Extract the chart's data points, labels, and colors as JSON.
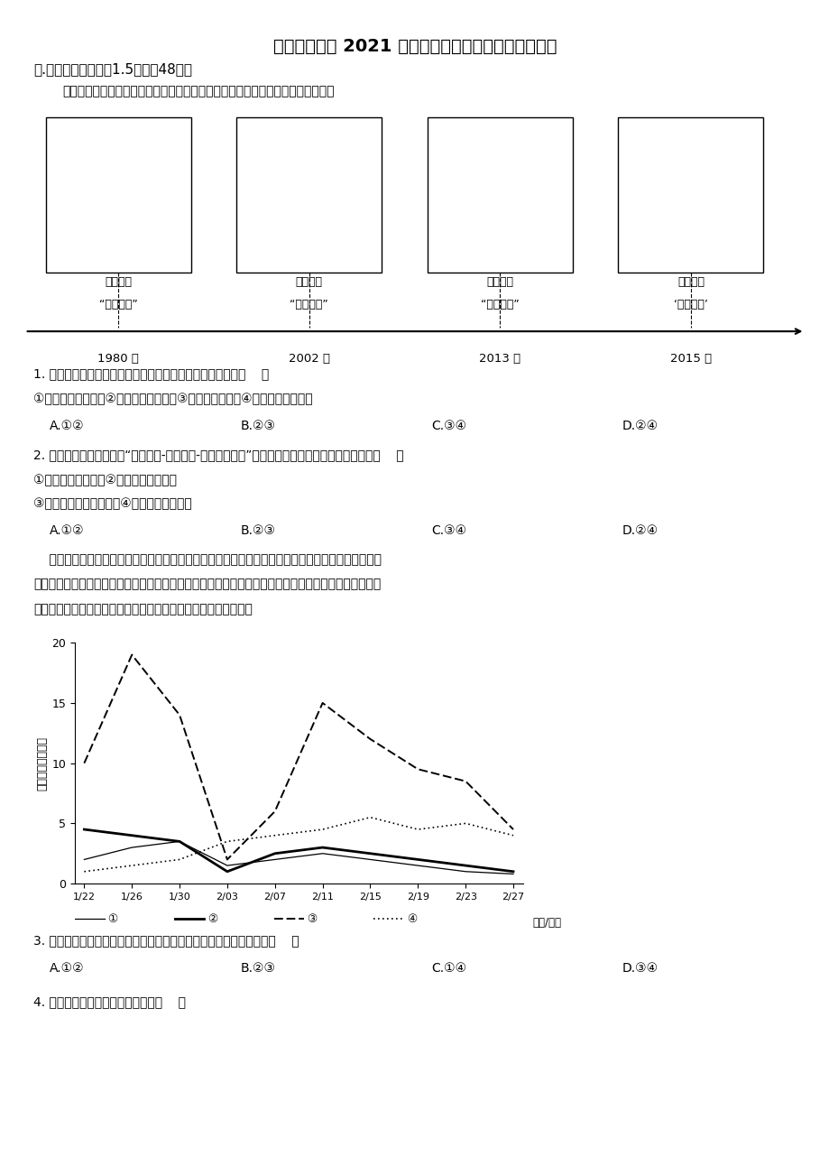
{
  "title": "绵阳南山中学 2021 年春季高一学年期末考试地理试题",
  "section1": "一.单项选择题（每题1.5分，全48分）",
  "intro_text": "改革开放以来，我国的人口生育政策进行了动态调整（如下图），完成下面小题。",
  "policy_years": [
    "1980 年",
    "2002 年",
    "2013 年",
    "2015 年"
  ],
  "policy_label1_line1": "国家提倡",
  "policy_label1_line2": "“只生一个”",
  "policy_label2_line1": "陆续推开",
  "policy_label2_line2": "“双独二孩”",
  "policy_label3_line1": "开始启动",
  "policy_label3_line2": "“单独二孩”",
  "policy_label4_line1": "提出实施",
  "policy_label4_line2": "‘全面二孩’",
  "q1_text": "1. 我国人口生育政策调整与下列人口数据变化关系密切的是（    ）",
  "q1_items": "①老年人口数量增加②劳动人口比重降低③人口死亡率升高④人口迁移数量增加",
  "q1_options": [
    "A.①②",
    "B.②③",
    "C.③④",
    "D.②④"
  ],
  "q2_text": "2. 我国人口增长的特点是“低出生率-低死亡率-低自然增长率”，影响我国人口出生率下降的原因有（    ）",
  "q2_items1": "①平均初婚年龄降低②生活富裕程度提高",
  "q2_items2": "③社会保障体系逐步完善④育龄妇女比重提高",
  "q2_options": [
    "A.①②",
    "B.②③",
    "C.③④",
    "D.②④"
  ],
  "para_line1": "    百度迁徙规模指数反映春运期间迁入或迁出的人口规模。甲、乙为我国相邻省份中的两个城市。乙市",
  "para_line2": "制造业发达，吸引甲市大量人口赴乙市务工。下图示意某年甲、乙两市人口迁入和迁出的百度迁徙规模指",
  "para_line3": "数变化。该年度迁徙规模指数甲市小于乙市。据此完成下面小题。",
  "chart_xlabel": "（月/日）",
  "chart_ylabel": "百度迁徙规模指数",
  "chart_yticks": [
    0,
    5,
    10,
    15,
    20
  ],
  "chart_xticks": [
    "1/22",
    "1/26",
    "1/30",
    "2/03",
    "2/07",
    "2/11",
    "2/15",
    "2/19",
    "2/23",
    "2/27"
  ],
  "legend_items": [
    "①",
    "②",
    "③",
    "④"
  ],
  "q3_text": "3. 图中表示甲、乙两市人口迁出的百度迁徙规模指数变化曲线分别是（    ）",
  "q3_options": [
    "A.①②",
    "B.②③",
    "C.①④",
    "D.③④"
  ],
  "q4_text": "4. 春运期间甲、乙两市的人口流动（    ）",
  "background_color": "#ffffff",
  "text_color": "#000000"
}
